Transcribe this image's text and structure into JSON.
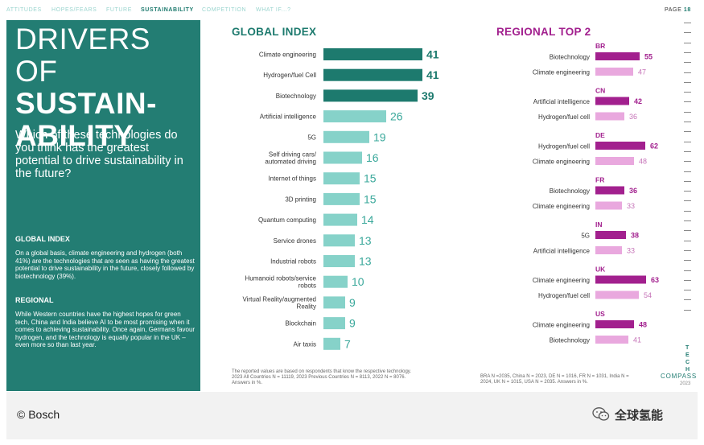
{
  "nav": {
    "items": [
      "ATTITUDES",
      "HOPES/FEARS",
      "FUTURE",
      "SUSTAINABILITY",
      "COMPETITION",
      "WHAT IF...?"
    ],
    "active_index": 3,
    "page_label": "PAGE",
    "page_number": "18"
  },
  "left_panel": {
    "title_line1": "DRIVERS OF",
    "title_line2": "SUSTAIN-",
    "title_line3": "ABILITY",
    "question": "Which of these technologies do you think has the greatest potential to drive sustainability in the future?",
    "global_heading": "GLOBAL INDEX",
    "global_text": "On a global basis, climate engineering and hydrogen (both 41%) are the technologies that are seen as having the greatest potential to drive sustainability in the future, closely followed by biotechnology (39%).",
    "regional_heading": "REGIONAL",
    "regional_text": "While Western countries have the highest hopes for green tech, China and India believe AI to be most promising when it comes to achieving sustainability. Once again, Germans favour hydrogen, and the technology is equally popular in the UK – even more so than last year.",
    "colors": {
      "panel": "#237d73"
    }
  },
  "chart_data": [
    {
      "type": "bar",
      "orientation": "horizontal",
      "title": "GLOBAL INDEX",
      "categories": [
        "Climate engineering",
        "Hydrogen/fuel Cell",
        "Biotechnology",
        "Artificial intelligence",
        "5G",
        "Self driving cars/ automated driving",
        "Internet of things",
        "3D printing",
        "Quantum computing",
        "Service drones",
        "Industrial robots",
        "Humanoid robots/service robots",
        "Virtual Reality/augmented Reality",
        "Blockchain",
        "Air taxis"
      ],
      "values": [
        41,
        41,
        39,
        26,
        19,
        16,
        15,
        15,
        14,
        13,
        13,
        10,
        9,
        9,
        7
      ],
      "highlight_top": 3,
      "colors": {
        "top": "#1d7a6e",
        "rest": "#86d2c9",
        "label_top": "#1d7a6e",
        "label_rest": "#3aa89b"
      }
    },
    {
      "type": "bar",
      "orientation": "horizontal",
      "title": "REGIONAL TOP 2",
      "groups": [
        {
          "country": "BR",
          "items": [
            {
              "label": "Biotechnology",
              "value": 55
            },
            {
              "label": "Climate engineering",
              "value": 47
            }
          ]
        },
        {
          "country": "CN",
          "items": [
            {
              "label": "Artificial intelligence",
              "value": 42
            },
            {
              "label": "Hydrogen/fuel cell",
              "value": 36
            }
          ]
        },
        {
          "country": "DE",
          "items": [
            {
              "label": "Hydrogen/fuel cell",
              "value": 62
            },
            {
              "label": "Climate engineering",
              "value": 48
            }
          ]
        },
        {
          "country": "FR",
          "items": [
            {
              "label": "Biotechnology",
              "value": 36
            },
            {
              "label": "Climate engineering",
              "value": 33
            }
          ]
        },
        {
          "country": "IN",
          "items": [
            {
              "label": "5G",
              "value": 38
            },
            {
              "label": "Artificial intelligence",
              "value": 33
            }
          ]
        },
        {
          "country": "UK",
          "items": [
            {
              "label": "Climate engineering",
              "value": 63
            },
            {
              "label": "Hydrogen/fuel cell",
              "value": 54
            }
          ]
        },
        {
          "country": "US",
          "items": [
            {
              "label": "Climate engineering",
              "value": 48
            },
            {
              "label": "Biotechnology",
              "value": 41
            }
          ]
        }
      ],
      "colors": {
        "first": "#a2208e",
        "second": "#e9a8de",
        "label_first": "#a2208e",
        "label_second": "#c674b8"
      }
    }
  ],
  "footnotes": {
    "global": "The reported values are based on respondents that know the respective technology. 2023 All Countries N = 11119, 2023 Previous Countries N = 8113, 2022 N = 8076. Answers in %.",
    "regional": "BRA N =2035, China N = 2023, DE N = 1016, FR N = 1031, India N = 2024, UK N = 1015, USA N = 2035. Answers in %."
  },
  "brand": {
    "tech_letters": [
      "T",
      "E",
      "C",
      "H"
    ],
    "compass": "COMPASS",
    "year": "2023"
  },
  "bottom": {
    "copyright": "© Bosch",
    "wechat_label": "全球氢能"
  }
}
